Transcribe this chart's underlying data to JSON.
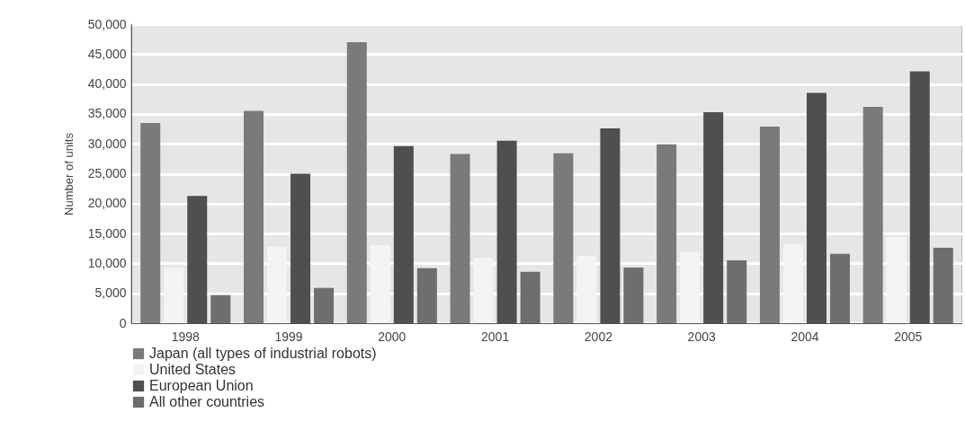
{
  "chart_data": {
    "type": "bar",
    "ylabel": "Number of units",
    "categories": [
      "1998",
      "1999",
      "2000",
      "2001",
      "2002",
      "2003",
      "2004",
      "2005"
    ],
    "series": [
      {
        "name": "Japan (all types of industrial robots)",
        "color": "#7a7a7a",
        "values": [
          33500,
          35500,
          47000,
          28300,
          28400,
          29900,
          32900,
          36200
        ]
      },
      {
        "name": "United States",
        "color": "#f4f4f4",
        "values": [
          9300,
          12800,
          13100,
          10900,
          11300,
          11900,
          13200,
          14400
        ]
      },
      {
        "name": "European Union",
        "color": "#4f4f4f",
        "values": [
          21300,
          25000,
          29600,
          30500,
          32600,
          35300,
          38500,
          42100
        ]
      },
      {
        "name": "All other countries",
        "color": "#6e6e6e",
        "values": [
          4700,
          5900,
          9200,
          8600,
          9300,
          10500,
          11600,
          12600
        ]
      }
    ],
    "ylim": [
      0,
      50000
    ],
    "yticks": [
      0,
      {
        "value": 5000,
        "label": "5,000"
      },
      {
        "value": 10000,
        "label": "10,000"
      },
      {
        "value": 15000,
        "label": "15,000"
      },
      {
        "value": 20000,
        "label": "20,000"
      },
      {
        "value": 25000,
        "label": "25,000"
      },
      {
        "value": 30000,
        "label": "30,000"
      },
      {
        "value": 35000,
        "label": "35,000"
      },
      {
        "value": 40000,
        "label": "40,000"
      },
      {
        "value": 45000,
        "label": "45,000"
      },
      {
        "value": 50000,
        "label": "50,000"
      }
    ],
    "grid": "y",
    "legend": "bottom"
  }
}
